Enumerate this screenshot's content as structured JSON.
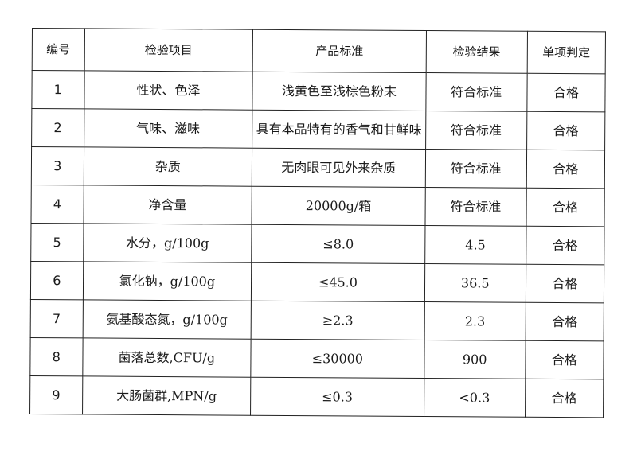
{
  "table": {
    "headers": [
      "编号",
      "检验项目",
      "产品标准",
      "检验结果",
      "单项判定"
    ],
    "rows": [
      [
        "1",
        "性状、色泽",
        "浅黄色至浅棕色粉末",
        "符合标准",
        "合格"
      ],
      [
        "2",
        "气味、滋味",
        "具有本品特有的香气和甘鲜味",
        "符合标准",
        "合格"
      ],
      [
        "3",
        "杂质",
        "无肉眼可见外来杂质",
        "符合标准",
        "合格"
      ],
      [
        "4",
        "净含量",
        "20000g/箱",
        "符合标准",
        "合格"
      ],
      [
        "5",
        "水分，g/100g",
        "≤8.0",
        "4.5",
        "合格"
      ],
      [
        "6",
        "氯化钠，g/100g",
        "≤45.0",
        "36.5",
        "合格"
      ],
      [
        "7",
        "氨基酸态氮，g/100g",
        "≥2.3",
        "2.3",
        "合格"
      ],
      [
        "8",
        "菌落总数,CFU/g",
        "≤30000",
        "900",
        "合格"
      ],
      [
        "9",
        "大肠菌群,MPN/g",
        "≤0.3",
        "<0.3",
        "合格"
      ]
    ]
  }
}
